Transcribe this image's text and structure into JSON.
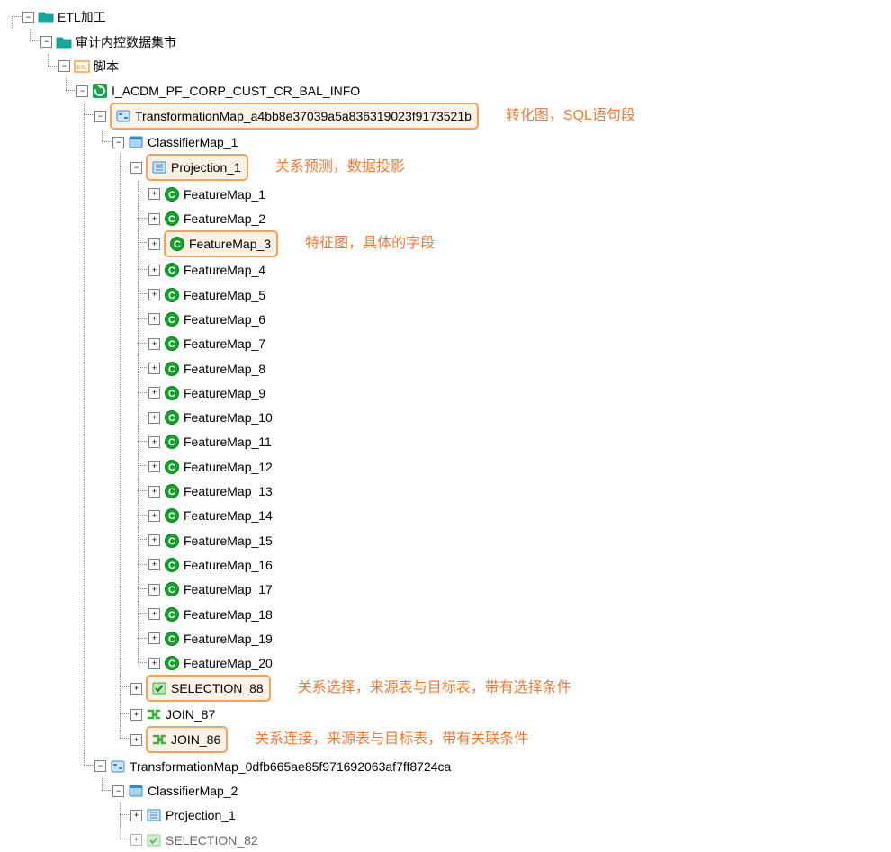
{
  "colors": {
    "folder_teal": "#16a89e",
    "folder_dark": "#0a8a82",
    "refresh_bg": "#1aa34a",
    "feature_green": "#14a22c",
    "feature_ring": "#0a7a1e",
    "classifier_blue": "#aad4f5",
    "classifier_border": "#3a87c8",
    "projection_fill": "#cde7fa",
    "selection_fill": "#b8e6b8",
    "join_green": "#3db23d",
    "highlight_border": "#f5a15a",
    "highlight_bg": "#fef1e5",
    "annotation": "#ee7b3a",
    "etl_orange": "#f2a13c",
    "tree_line": "#808080"
  },
  "root": {
    "label": "ETL加工",
    "children": [
      {
        "label": "审计内控数据集市",
        "icon": "folder",
        "children": [
          {
            "label": "脚本",
            "icon": "etl",
            "children": [
              {
                "label": "I_ACDM_PF_CORP_CUST_CR_BAL_INFO",
                "icon": "refresh",
                "children": [
                  {
                    "label": "TransformationMap_a4bb8e37039a5a836319023f9173521b",
                    "icon": "transform",
                    "highlight": true,
                    "annotation": "转化图，SQL语句段",
                    "children": [
                      {
                        "label": "ClassifierMap_1",
                        "icon": "classifier",
                        "children": [
                          {
                            "label": "Projection_1",
                            "icon": "projection",
                            "highlight": true,
                            "annotation": "关系预测，数据投影",
                            "feature_maps": [
                              "FeatureMap_1",
                              "FeatureMap_2",
                              "FeatureMap_3",
                              "FeatureMap_4",
                              "FeatureMap_5",
                              "FeatureMap_6",
                              "FeatureMap_7",
                              "FeatureMap_8",
                              "FeatureMap_9",
                              "FeatureMap_10",
                              "FeatureMap_11",
                              "FeatureMap_12",
                              "FeatureMap_13",
                              "FeatureMap_14",
                              "FeatureMap_15",
                              "FeatureMap_16",
                              "FeatureMap_17",
                              "FeatureMap_18",
                              "FeatureMap_19",
                              "FeatureMap_20"
                            ],
                            "feature_highlight_index": 2,
                            "feature_annotation": "特征图，具体的字段"
                          },
                          {
                            "label": "SELECTION_88",
                            "icon": "selection",
                            "highlight": true,
                            "collapsed": true,
                            "annotation": "关系选择，来源表与目标表，带有选择条件"
                          },
                          {
                            "label": "JOIN_87",
                            "icon": "join",
                            "collapsed": true
                          },
                          {
                            "label": "JOIN_86",
                            "icon": "join",
                            "highlight": true,
                            "collapsed": true,
                            "annotation": "关系连接，来源表与目标表，带有关联条件"
                          }
                        ]
                      }
                    ]
                  },
                  {
                    "label": "TransformationMap_0dfb665ae85f971692063af7ff8724ca",
                    "icon": "transform",
                    "children": [
                      {
                        "label": "ClassifierMap_2",
                        "icon": "classifier",
                        "children": [
                          {
                            "label": "Projection_1",
                            "icon": "projection",
                            "collapsed": true
                          },
                          {
                            "label": "SELECTION_82",
                            "icon": "selection",
                            "collapsed": true,
                            "truncated": true
                          }
                        ]
                      }
                    ]
                  }
                ]
              }
            ]
          }
        ]
      }
    ]
  }
}
